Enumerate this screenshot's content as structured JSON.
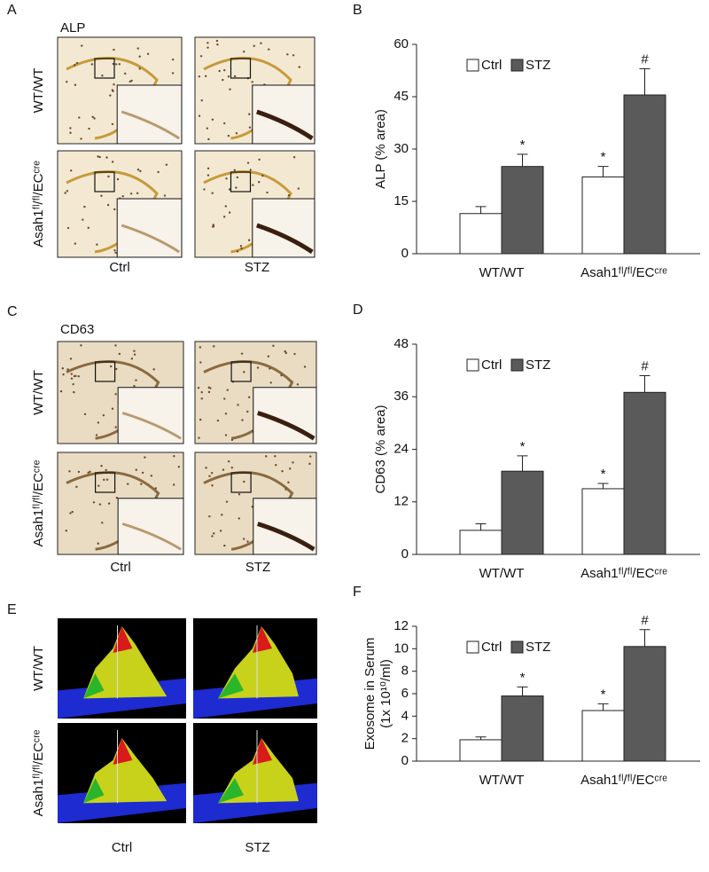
{
  "image_panels": [
    {
      "letter": "A",
      "stain": "ALP",
      "rows": [
        "WT/WT",
        "Asah1ᶠˡ/ᶠˡ/ECᶜʳᵉ"
      ],
      "cols": [
        "Ctrl",
        "STZ"
      ]
    },
    {
      "letter": "C",
      "stain": "CD63",
      "rows": [
        "WT/WT",
        "Asah1ᶠˡ/ᶠˡ/ECᶜʳᵉ"
      ],
      "cols": [
        "Ctrl",
        "STZ"
      ]
    },
    {
      "letter": "E",
      "rows": [
        "WT/WT",
        "Asah1ᶠˡ/ᶠˡ/ECᶜʳᵉ"
      ],
      "cols": [
        "Ctrl",
        "STZ"
      ]
    }
  ],
  "chart_data": [
    {
      "type": "bar",
      "panel_label": "B",
      "ylabel": "ALP (% area)",
      "categories": [
        "WT/WT",
        "Asah1ᶠˡ/ᶠˡ/ECᶜʳᵉ"
      ],
      "series": [
        {
          "name": "Ctrl",
          "color": "#ffffff",
          "values": [
            11.5,
            22
          ],
          "errors": [
            2,
            3
          ],
          "markers": [
            null,
            "*"
          ]
        },
        {
          "name": "STZ",
          "color": "#5a5a5a",
          "values": [
            25,
            45.5
          ],
          "errors": [
            3.5,
            7.5
          ],
          "markers": [
            "*",
            "#"
          ]
        }
      ],
      "ylim": [
        0,
        60
      ],
      "yticks": [
        0,
        15,
        30,
        45,
        60
      ],
      "legend": "top-left"
    },
    {
      "type": "bar",
      "panel_label": "D",
      "ylabel": "CD63 (% area)",
      "categories": [
        "WT/WT",
        "Asah1ᶠˡ/ᶠˡ/ECᶜʳᵉ"
      ],
      "series": [
        {
          "name": "Ctrl",
          "color": "#ffffff",
          "values": [
            5.5,
            15
          ],
          "errors": [
            1.5,
            1.2
          ],
          "markers": [
            null,
            "*"
          ]
        },
        {
          "name": "STZ",
          "color": "#5a5a5a",
          "values": [
            19,
            37
          ],
          "errors": [
            3.5,
            3.8
          ],
          "markers": [
            "*",
            "#"
          ]
        }
      ],
      "ylim": [
        0,
        48
      ],
      "yticks": [
        0,
        12,
        24,
        36,
        48
      ],
      "legend": "top-left"
    },
    {
      "type": "bar",
      "panel_label": "F",
      "ylabel": [
        "Exosome in Serum",
        "(1x 10¹⁰/ml)"
      ],
      "categories": [
        "WT/WT",
        "Asah1ᶠˡ/ᶠˡ/ECᶜʳᵉ"
      ],
      "series": [
        {
          "name": "Ctrl",
          "color": "#ffffff",
          "values": [
            1.9,
            4.5
          ],
          "errors": [
            0.25,
            0.6
          ],
          "markers": [
            null,
            "*"
          ]
        },
        {
          "name": "STZ",
          "color": "#5a5a5a",
          "values": [
            5.8,
            10.2
          ],
          "errors": [
            0.8,
            1.5
          ],
          "markers": [
            "*",
            "#"
          ]
        }
      ],
      "ylim": [
        0,
        12
      ],
      "yticks": [
        0,
        2,
        4,
        6,
        8,
        10,
        12
      ],
      "legend": "top-left"
    }
  ]
}
